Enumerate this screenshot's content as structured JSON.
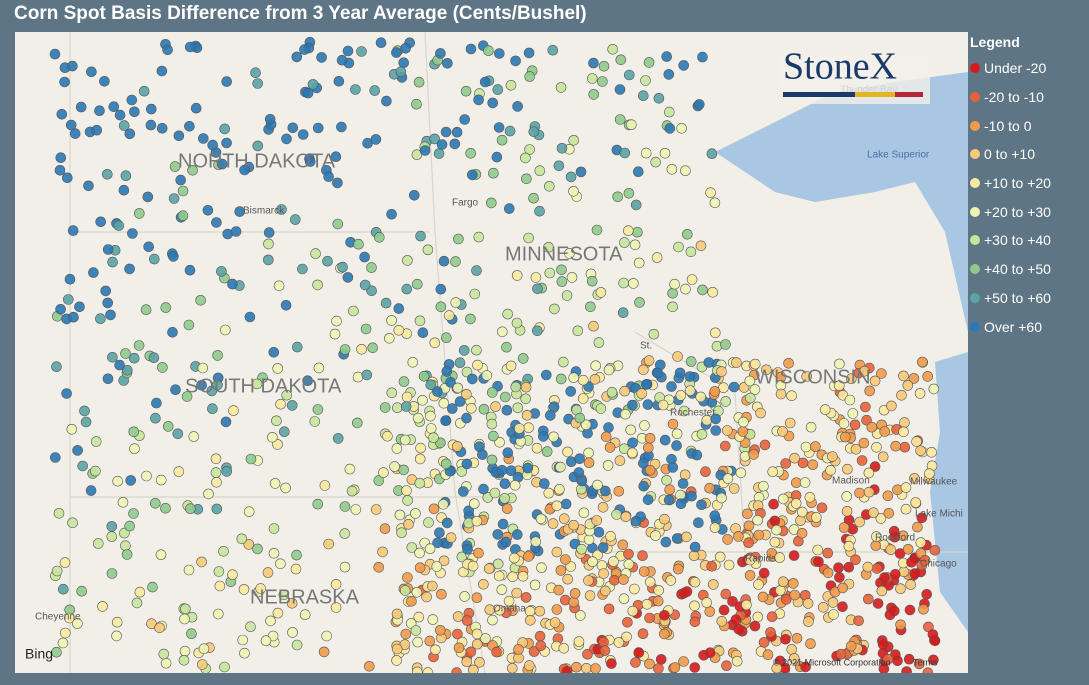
{
  "title": "Corn Spot Basis Difference from 3 Year Average (Cents/Bushel)",
  "legend": {
    "title": "Legend",
    "items": [
      {
        "label": "Under -20",
        "color": "#d7191c"
      },
      {
        "label": "-20 to -10",
        "color": "#e8623a"
      },
      {
        "label": "-10 to 0",
        "color": "#f19a4a"
      },
      {
        "label": "0 to +10",
        "color": "#f7c978"
      },
      {
        "label": "+10 to +20",
        "color": "#fbe9a0"
      },
      {
        "label": "+20 to +30",
        "color": "#eef4b4"
      },
      {
        "label": "+30 to +40",
        "color": "#c8e59b"
      },
      {
        "label": "+40 to +50",
        "color": "#8fca8c"
      },
      {
        "label": "+50 to +60",
        "color": "#5aa3a6"
      },
      {
        "label": "Over +60",
        "color": "#2b78b4"
      }
    ]
  },
  "map": {
    "labels": [
      "NORTH DAKOTA",
      "SOUTH DAKOTA",
      "MINNESOTA",
      "WISCONSIN",
      "NEBRASKA"
    ],
    "places": [
      "Bismarck",
      "Fargo",
      "Thunder Bay",
      "Lake Superior",
      "Madison",
      "Milwaukee",
      "Lake Michi",
      "Rockford",
      "Chicago",
      "Rapids",
      "Cheyenne",
      "Omaha",
      "Rochester",
      "St."
    ],
    "logo": "StoneX",
    "provider": "Bing",
    "attribution": "© 2021 Microsoft Corporation",
    "terms": "Terms"
  }
}
